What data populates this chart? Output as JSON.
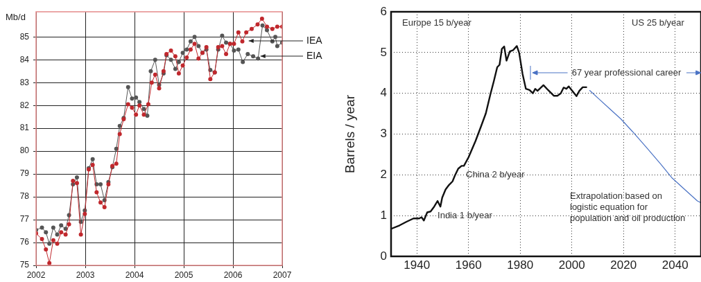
{
  "chart_data": [
    {
      "type": "line",
      "ylabel": "Mb/d",
      "xlim": [
        2002,
        2007
      ],
      "xticks": [
        2002,
        2003,
        2004,
        2005,
        2006,
        2007
      ],
      "ylim": [
        75,
        86.1
      ],
      "yticks": [
        75,
        76,
        77,
        78,
        79,
        80,
        81,
        82,
        83,
        84,
        85
      ],
      "grid": true,
      "marker": "circle",
      "line_style": "solid",
      "x": [
        2002.0,
        2002.12,
        2002.2,
        2002.27,
        2002.35,
        2002.43,
        2002.51,
        2002.6,
        2002.67,
        2002.75,
        2002.83,
        2002.91,
        2002.99,
        2003.07,
        2003.15,
        2003.23,
        2003.31,
        2003.39,
        2003.47,
        2003.55,
        2003.63,
        2003.7,
        2003.78,
        2003.87,
        2003.95,
        2004.03,
        2004.1,
        2004.19,
        2004.28,
        2004.35,
        2004.42,
        2004.5,
        2004.59,
        2004.65,
        2004.74,
        2004.83,
        2004.9,
        2004.98,
        2005.06,
        2005.14,
        2005.22,
        2005.3,
        2005.38,
        2005.46,
        2005.54,
        2005.63,
        2005.7,
        2005.78,
        2005.86,
        2005.94,
        2006.02,
        2006.11,
        2006.19,
        2006.27,
        2006.38,
        2006.5,
        2006.59,
        2006.69,
        2006.8,
        2006.9,
        2007.0
      ],
      "series": [
        {
          "name": "IEA",
          "color": "#c0282d",
          "values": [
            76.4,
            76.15,
            75.7,
            75.1,
            76.1,
            75.95,
            76.45,
            76.35,
            76.8,
            78.7,
            78.6,
            76.35,
            77.25,
            79.2,
            79.4,
            78.2,
            77.75,
            77.55,
            78.55,
            79.35,
            79.45,
            80.75,
            81.4,
            82.05,
            81.9,
            81.6,
            82.0,
            81.6,
            82.05,
            83.0,
            83.35,
            82.75,
            83.5,
            84.25,
            84.4,
            84.15,
            83.4,
            83.75,
            84.1,
            84.45,
            84.7,
            84.05,
            84.3,
            84.55,
            83.15,
            83.45,
            84.55,
            84.6,
            84.25,
            84.7,
            84.7,
            85.2,
            84.8,
            85.2,
            85.35,
            85.55,
            85.8,
            85.45,
            85.35,
            85.45,
            85.45
          ]
        },
        {
          "name": "EIA",
          "color": "#555555",
          "x": [
            2002.0,
            2002.12,
            2002.2,
            2002.27,
            2002.35,
            2002.43,
            2002.51,
            2002.6,
            2002.67,
            2002.75,
            2002.83,
            2002.91,
            2002.99,
            2003.07,
            2003.15,
            2003.23,
            2003.31,
            2003.39,
            2003.47,
            2003.55,
            2003.63,
            2003.7,
            2003.78,
            2003.87,
            2003.95,
            2004.03,
            2004.1,
            2004.19,
            2004.26,
            2004.33,
            2004.42,
            2004.5,
            2004.59,
            2004.65,
            2004.74,
            2004.83,
            2004.9,
            2004.98,
            2005.06,
            2005.14,
            2005.22,
            2005.3,
            2005.38,
            2005.46,
            2005.54,
            2005.63,
            2005.7,
            2005.78,
            2005.86,
            2005.94,
            2006.02,
            2006.11,
            2006.2,
            2006.3,
            2006.41,
            2006.51,
            2006.6,
            2006.69,
            2006.8,
            2006.86,
            2006.9,
            2007.0
          ],
          "values": [
            76.55,
            76.65,
            76.45,
            75.95,
            76.65,
            76.35,
            76.75,
            76.6,
            77.2,
            78.55,
            78.85,
            76.9,
            77.4,
            79.25,
            79.65,
            78.55,
            78.55,
            77.85,
            78.65,
            79.3,
            80.1,
            81.1,
            81.45,
            82.8,
            82.3,
            82.35,
            82.15,
            81.85,
            81.55,
            83.5,
            84.0,
            82.9,
            83.4,
            84.2,
            84.0,
            83.6,
            83.9,
            84.3,
            84.45,
            84.8,
            85.0,
            84.6,
            84.3,
            84.45,
            83.55,
            83.45,
            84.45,
            85.05,
            84.75,
            84.7,
            84.4,
            84.45,
            83.9,
            84.25,
            84.15,
            84.05,
            85.5,
            85.3,
            84.8,
            85.0,
            84.6,
            84.75
          ]
        }
      ]
    },
    {
      "type": "line",
      "ylabel": "Barrels / year",
      "xlim": [
        1930,
        2050
      ],
      "xticks": [
        1940,
        1960,
        1980,
        2000,
        2020,
        2040
      ],
      "ylim": [
        0,
        6
      ],
      "yticks": [
        0,
        1,
        2,
        3,
        4,
        5,
        6
      ],
      "grid": true,
      "marker": "none",
      "line_style": "solid",
      "annotations": [
        "Europe 15 b/year",
        "US 25 b/year",
        "China 2 b/year",
        "India 1 b/year",
        "67 year professional career",
        "Extrapolation based on logistic equation for population and oil production"
      ],
      "series": [
        {
          "color": "#111111",
          "x": [
            1930.2,
            1933.3,
            1936,
            1938.7,
            1940.9,
            1941.8,
            1942.7,
            1944,
            1945.3,
            1946.7,
            1948,
            1949.1,
            1949.8,
            1951.1,
            1952.4,
            1953.8,
            1954.7,
            1956,
            1957.3,
            1958.2,
            1960,
            1962.7,
            1964.9,
            1966.7,
            1968.4,
            1969.8,
            1971.1,
            1972,
            1972.9,
            1973.8,
            1974.7,
            1976,
            1977.3,
            1978.7,
            1979.6,
            1980.9,
            1982.2,
            1983.6,
            1984.9,
            1985.8,
            1986.7,
            1989,
            1990.8,
            1993,
            1994.4,
            1995.7,
            1996.8,
            1997.9,
            1998.8,
            2000.4,
            2001.8,
            2002.9,
            2004.2,
            2005.6
          ],
          "values": [
            0.68,
            0.76,
            0.85,
            0.93,
            0.93,
            0.96,
            0.88,
            1.08,
            1.1,
            1.22,
            1.36,
            1.22,
            1.44,
            1.64,
            1.75,
            1.84,
            1.98,
            2.15,
            2.22,
            2.22,
            2.43,
            2.83,
            3.2,
            3.51,
            3.96,
            4.3,
            4.64,
            4.7,
            5.09,
            5.15,
            4.8,
            5.03,
            5.06,
            5.16,
            4.99,
            4.48,
            4.11,
            4.08,
            4.0,
            4.11,
            4.06,
            4.2,
            4.08,
            3.94,
            3.94,
            4.0,
            4.14,
            4.11,
            4.17,
            4.04,
            3.93,
            4.06,
            4.15,
            4.15
          ]
        },
        {
          "color": "#4a72c4",
          "x": [
            2006.9,
            2010.5,
            2014.5,
            2019,
            2023.5,
            2028.9,
            2034.3,
            2038.7,
            2043.7,
            2048.6,
            2049.8
          ],
          "values": [
            4.07,
            3.86,
            3.63,
            3.37,
            3.06,
            2.67,
            2.27,
            1.93,
            1.64,
            1.36,
            1.32
          ]
        }
      ]
    }
  ]
}
